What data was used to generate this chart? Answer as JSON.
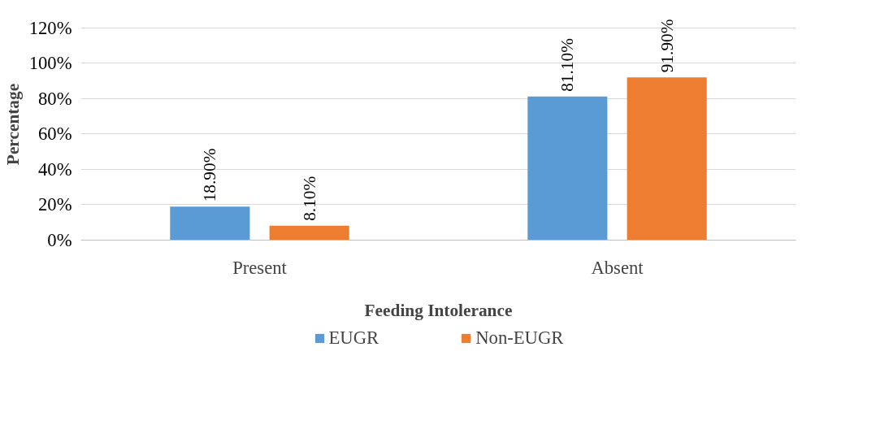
{
  "chart_data": {
    "type": "bar",
    "xlabel": "Feeding Intolerance",
    "ylabel": "Percentage",
    "categories": [
      "Present",
      "Absent"
    ],
    "series": [
      {
        "name": "EUGR",
        "color": "#5b9bd5",
        "values": [
          18.9,
          81.1
        ],
        "value_labels": [
          "18.90%",
          "81.10%"
        ]
      },
      {
        "name": "Non-EUGR",
        "color": "#ed7d31",
        "values": [
          8.1,
          91.9
        ],
        "value_labels": [
          "8.10%",
          "91.90%"
        ]
      }
    ],
    "ylim": [
      0,
      120
    ],
    "yticks": [
      {
        "value": 0,
        "label": "0%"
      },
      {
        "value": 20,
        "label": "20%"
      },
      {
        "value": 40,
        "label": "40%"
      },
      {
        "value": 60,
        "label": "60%"
      },
      {
        "value": 80,
        "label": "80%"
      },
      {
        "value": 100,
        "label": "100%"
      },
      {
        "value": 120,
        "label": "120%"
      }
    ],
    "grid": "y",
    "legend": "bottom"
  }
}
